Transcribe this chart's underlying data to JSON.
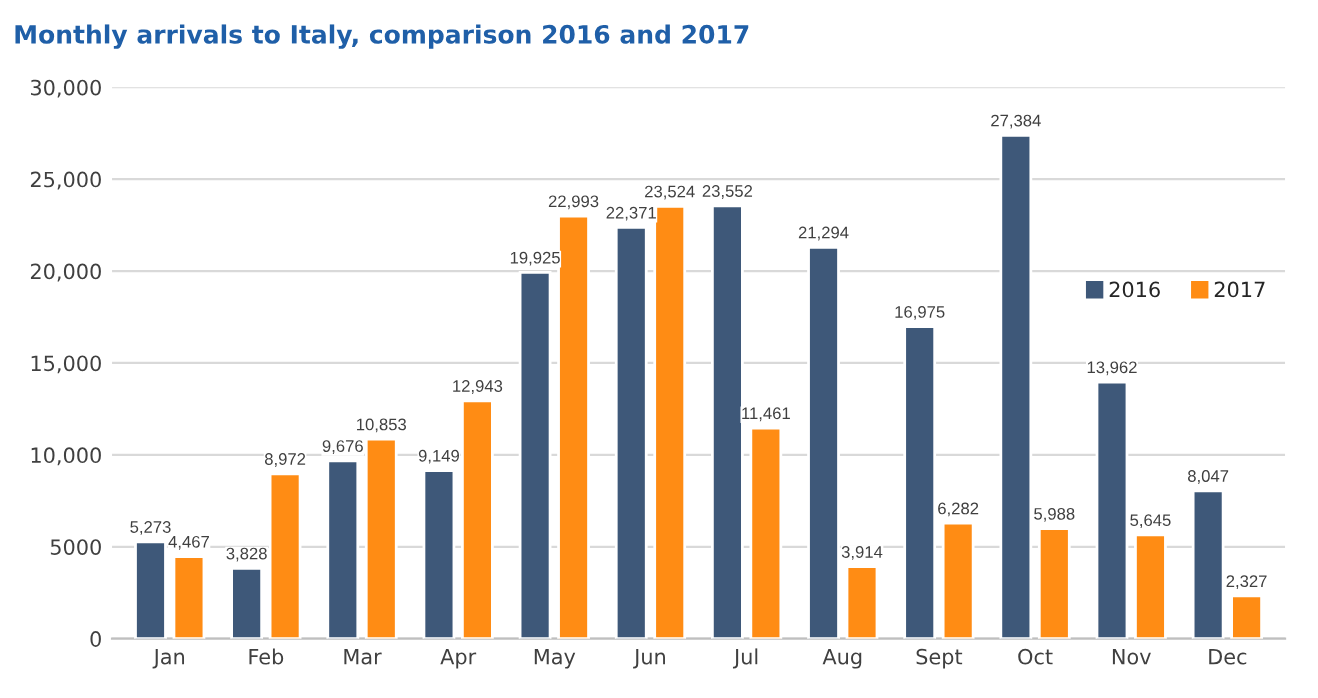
{
  "chart_data": {
    "type": "bar",
    "title": "Monthly arrivals to Italy, comparison 2016 and 2017",
    "categories": [
      "Jan",
      "Feb",
      "Mar",
      "Apr",
      "May",
      "Jun",
      "Jul",
      "Aug",
      "Sept",
      "Oct",
      "Nov",
      "Dec"
    ],
    "series": [
      {
        "name": "2016",
        "color": "#3e5879",
        "values": [
          5273,
          3828,
          9676,
          9149,
          19925,
          22371,
          23552,
          21294,
          16975,
          27384,
          13962,
          8047
        ],
        "value_labels": [
          "5,273",
          "3,828",
          "9,676",
          "9,149",
          "19,925",
          "22,371",
          "23,552",
          "21,294",
          "16,975",
          "27,384",
          "13,962",
          "8,047"
        ]
      },
      {
        "name": "2017",
        "color": "#ff8c14",
        "values": [
          4467,
          8972,
          10853,
          12943,
          22993,
          23524,
          11461,
          3914,
          6282,
          5988,
          5645,
          2327
        ],
        "value_labels": [
          "4,467",
          "8,972",
          "10,853",
          "12,943",
          "22,993",
          "23,524",
          "11,461",
          "3,914",
          "6,282",
          "5,988",
          "5,645",
          "2,327"
        ]
      }
    ],
    "ylim": [
      0,
      30000
    ],
    "yticks": [
      {
        "value": 0,
        "label": "0"
      },
      {
        "value": 5000,
        "label": "5000"
      },
      {
        "value": 10000,
        "label": "10,000"
      },
      {
        "value": 15000,
        "label": "15,000"
      },
      {
        "value": 20000,
        "label": "20,000"
      },
      {
        "value": 25000,
        "label": "25,000"
      },
      {
        "value": 30000,
        "label": "30,000"
      }
    ],
    "grid": "y",
    "legend": "right"
  }
}
